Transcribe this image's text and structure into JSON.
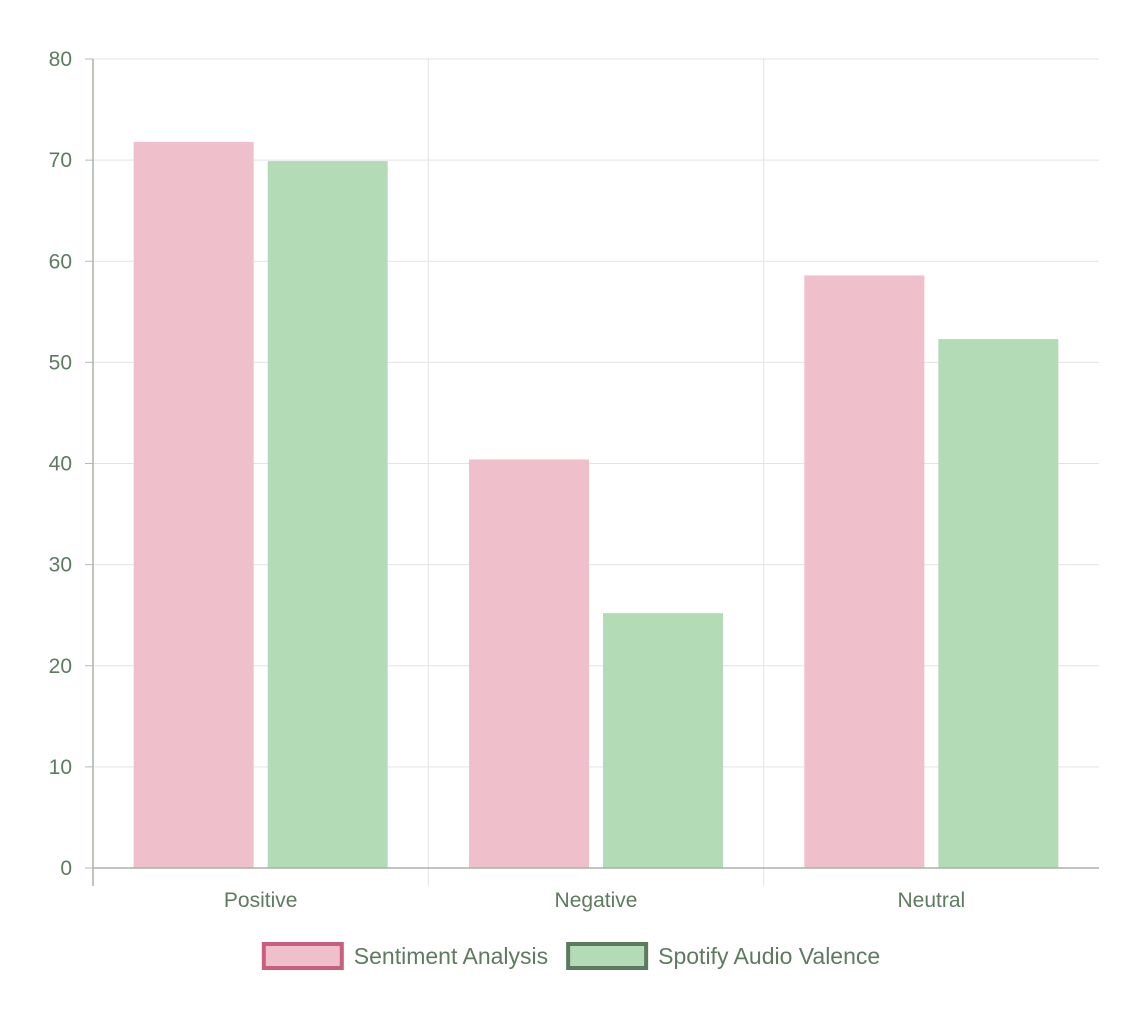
{
  "chart_data": {
    "type": "bar",
    "title": "",
    "xlabel": "",
    "ylabel": "",
    "categories": [
      "Positive",
      "Negative",
      "Neutral"
    ],
    "series": [
      {
        "name": "Sentiment Analysis",
        "values": [
          71.8,
          40.4,
          58.6
        ],
        "fill": "#f0bfcc",
        "stroke": "#c85f7e"
      },
      {
        "name": "Spotify Audio Valence",
        "values": [
          69.9,
          25.2,
          52.3
        ],
        "fill": "#b3dbb5",
        "stroke": "#5d7a60"
      }
    ],
    "ylim": [
      0,
      80
    ],
    "yticks": [
      0,
      10,
      20,
      30,
      40,
      50,
      60,
      70,
      80
    ],
    "grid": true,
    "legend_position": "bottom"
  }
}
